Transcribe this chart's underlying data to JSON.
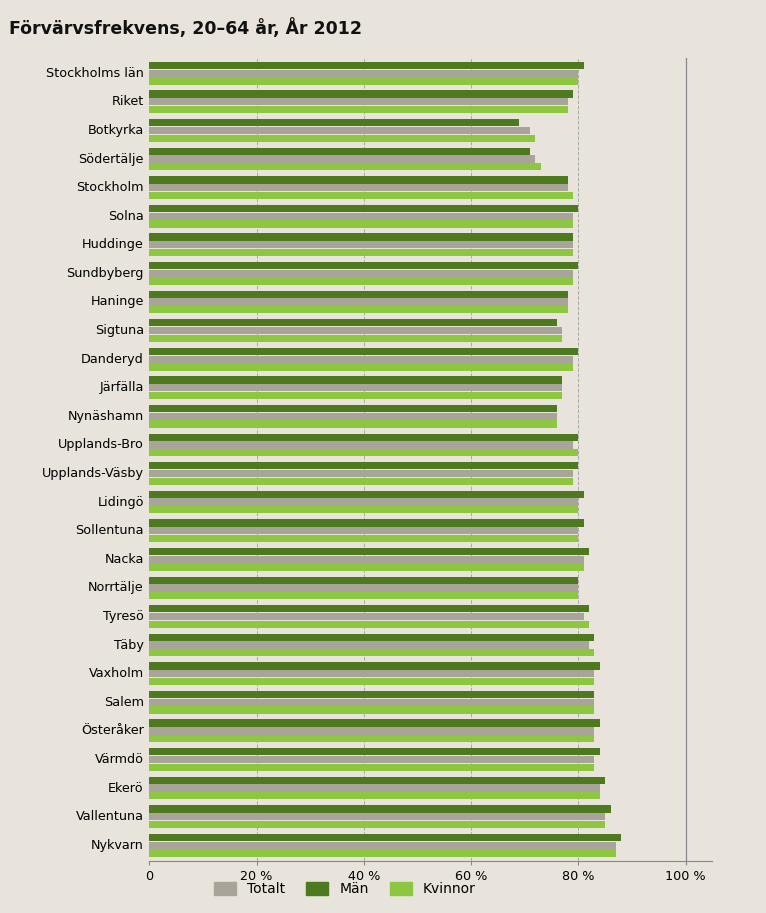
{
  "title": "Förvärvsfrekvens, 20–64 år, År 2012",
  "categories": [
    "Stockholms län",
    "Riket",
    "Botkyrka",
    "Södertälje",
    "Stockholm",
    "Solna",
    "Huddinge",
    "Sundbyberg",
    "Haninge",
    "Sigtuna",
    "Danderyd",
    "Järfälla",
    "Nynäshamn",
    "Upplands-Bro",
    "Upplands-Väsby",
    "Lidingö",
    "Sollentuna",
    "Nacka",
    "Norrtälje",
    "Tyresö",
    "Täby",
    "Vaxholm",
    "Salem",
    "Österåker",
    "Värmdö",
    "Ekerö",
    "Vallentuna",
    "Nykvarn"
  ],
  "totalt": [
    80,
    78,
    71,
    72,
    78,
    79,
    79,
    79,
    78,
    77,
    79,
    77,
    76,
    79,
    79,
    80,
    80,
    81,
    80,
    81,
    82,
    83,
    83,
    83,
    83,
    84,
    85,
    87
  ],
  "man": [
    81,
    79,
    69,
    71,
    78,
    80,
    79,
    80,
    78,
    76,
    80,
    77,
    76,
    80,
    80,
    81,
    81,
    82,
    80,
    82,
    83,
    84,
    83,
    84,
    84,
    85,
    86,
    88
  ],
  "kvinnor": [
    80,
    78,
    72,
    73,
    79,
    79,
    79,
    79,
    78,
    77,
    79,
    77,
    76,
    80,
    79,
    80,
    80,
    81,
    80,
    82,
    83,
    83,
    83,
    83,
    83,
    84,
    85,
    87
  ],
  "color_totalt": "#a9a49a",
  "color_man": "#4d7a1e",
  "color_kvinnor": "#8dc63f",
  "background_color": "#e8e4db",
  "title_bg": "#c5c0b5",
  "bar_height": 0.27,
  "xlim_max": 105,
  "xticks": [
    0,
    20,
    40,
    60,
    80,
    100
  ],
  "xticklabels": [
    "0",
    "20 %",
    "40 %",
    "60 %",
    "80 %",
    "100 %"
  ],
  "legend_labels": [
    "Totalt",
    "Män",
    "Kvinnor"
  ],
  "grid_color": "#aaaaaa"
}
